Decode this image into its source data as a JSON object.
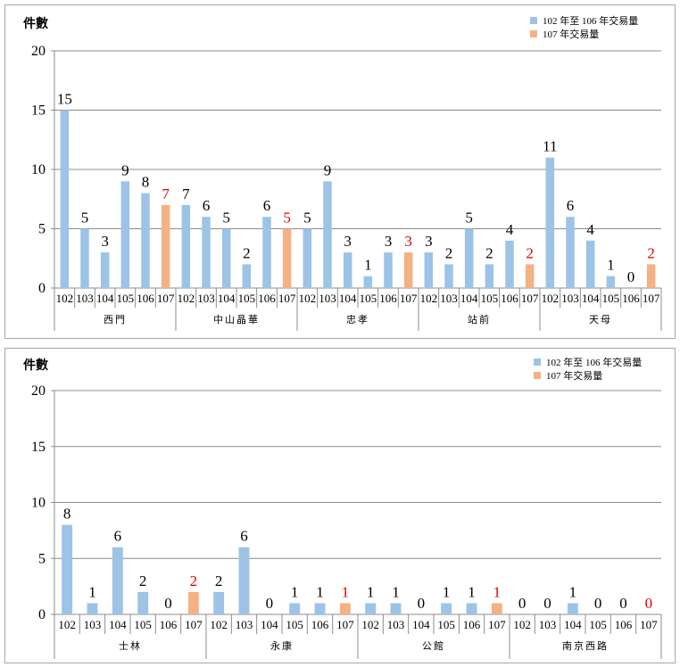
{
  "colors": {
    "past": "#9dc3e6",
    "current": "#f4b183",
    "current_label": "#e00000",
    "label": "#000000",
    "grid": "#8c8c8c"
  },
  "chart_data": [
    {
      "type": "bar",
      "ylabel": "件數",
      "ylim": [
        0,
        20
      ],
      "yticks": [
        0,
        5,
        10,
        15,
        20
      ],
      "grid": true,
      "legend": {
        "placement": "top-right",
        "entries": [
          {
            "label": "102 年至 106 年交易量",
            "series": "past"
          },
          {
            "label": "107 年交易量",
            "series": "current"
          }
        ]
      },
      "sub_categories": [
        "102",
        "103",
        "104",
        "105",
        "106",
        "107"
      ],
      "groups": [
        {
          "name": "西門",
          "values": [
            15,
            5,
            3,
            9,
            8,
            7
          ]
        },
        {
          "name": "中山晶華",
          "values": [
            7,
            6,
            5,
            2,
            6,
            5
          ]
        },
        {
          "name": "忠孝",
          "values": [
            5,
            9,
            3,
            1,
            3,
            3
          ]
        },
        {
          "name": "站前",
          "values": [
            3,
            2,
            5,
            2,
            4,
            2
          ]
        },
        {
          "name": "天母",
          "values": [
            11,
            6,
            4,
            1,
            0,
            2
          ]
        }
      ]
    },
    {
      "type": "bar",
      "ylabel": "件數",
      "ylim": [
        0,
        20
      ],
      "yticks": [
        0,
        5,
        10,
        15,
        20
      ],
      "grid": true,
      "legend": {
        "placement": "top-right",
        "entries": [
          {
            "label": "102 年至 106 年交易量",
            "series": "past"
          },
          {
            "label": "107 年交易量",
            "series": "current"
          }
        ]
      },
      "sub_categories": [
        "102",
        "103",
        "104",
        "105",
        "106",
        "107"
      ],
      "groups": [
        {
          "name": "士林",
          "values": [
            8,
            1,
            6,
            2,
            0,
            2
          ]
        },
        {
          "name": "永康",
          "values": [
            2,
            6,
            0,
            1,
            1,
            1
          ]
        },
        {
          "name": "公館",
          "values": [
            1,
            1,
            0,
            1,
            1,
            1
          ]
        },
        {
          "name": "南京西路",
          "values": [
            0,
            0,
            1,
            0,
            0,
            0
          ]
        }
      ]
    }
  ]
}
